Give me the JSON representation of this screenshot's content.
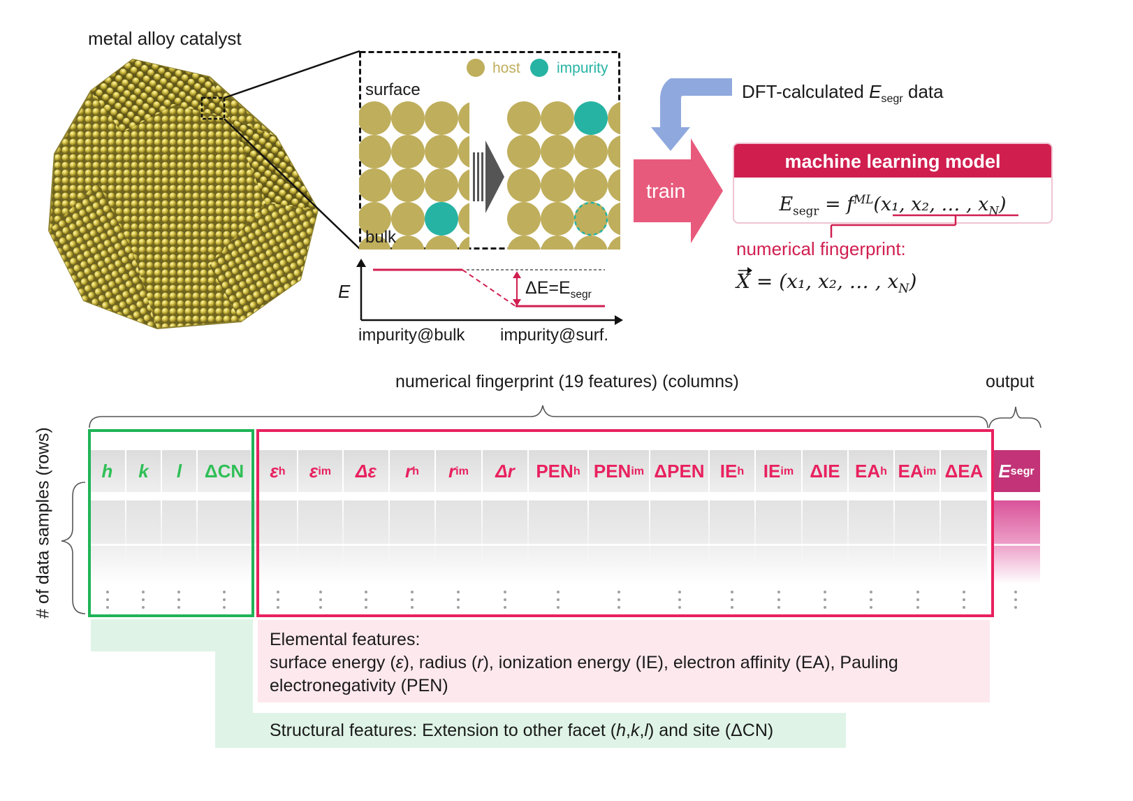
{
  "top": {
    "catalyst_label": "metal alloy catalyst",
    "legend_host": "host",
    "legend_impurity": "impurity",
    "surface_label": "surface",
    "bulk_label": "bulk",
    "energy_axis": "E",
    "delta_e_prefix": "ΔE=E",
    "delta_e_sub": "segr",
    "x_left": "impurity@bulk",
    "x_right": "impurity@surf.",
    "dft_prefix": "DFT-calculated ",
    "dft_e": "E",
    "dft_sub": "segr",
    "dft_suffix": " data",
    "train_label": "train",
    "ml_title": "machine learning model",
    "ml_eq_lhs": "E",
    "ml_eq_lhs_sub": "segr",
    "ml_eq_mid": " = f",
    "ml_eq_sup": "ML",
    "ml_eq_args": "(x₁, x₂, … , x",
    "ml_eq_argN": "N",
    "ml_eq_close": ")",
    "fingerprint_label": "numerical fingerprint:",
    "fp_eq_lhs": "X",
    "fp_eq_rest": " = (x₁, x₂, … , x",
    "fp_eq_N": "N",
    "fp_eq_close": ")"
  },
  "table": {
    "columns_label": "numerical fingerprint (19 features) (columns)",
    "output_label": "output",
    "rows_label": "# of data samples (rows)",
    "structural_headers": [
      "h",
      "k",
      "l",
      "ΔCN"
    ],
    "elemental_headers": [
      {
        "base": "ε",
        "sup": "h"
      },
      {
        "base": "ε",
        "sup": "im"
      },
      {
        "base": "Δε",
        "sup": ""
      },
      {
        "base": "r",
        "sup": "h"
      },
      {
        "base": "r",
        "sup": "im"
      },
      {
        "base": "Δr",
        "sup": ""
      },
      {
        "base": "PEN",
        "sup": "h"
      },
      {
        "base": "PEN",
        "sup": "im"
      },
      {
        "base": "ΔPEN",
        "sup": ""
      },
      {
        "base": "IE",
        "sup": "h"
      },
      {
        "base": "IE",
        "sup": "im"
      },
      {
        "base": "ΔIE",
        "sup": ""
      },
      {
        "base": "EA",
        "sup": "h"
      },
      {
        "base": "EA",
        "sup": "im"
      },
      {
        "base": "ΔEA",
        "sup": ""
      }
    ],
    "output_header": "E",
    "output_header_sub": "segr"
  },
  "notes": {
    "elemental_title": "Elemental features:",
    "elemental_line1_a": "surface energy (",
    "elemental_line1_eps": "ε",
    "elemental_line1_b": "), radius (",
    "elemental_line1_r": "r",
    "elemental_line1_c": "), ionization energy (IE), electron affinity (EA), Pauling",
    "elemental_line2": "electronegativity (PEN)",
    "structural_a": "Structural features: Extension to other facet (",
    "structural_h": "h",
    "structural_comma1": ",",
    "structural_k": "k",
    "structural_comma2": ",",
    "structural_l": "l",
    "structural_b": ") and site (ΔCN)"
  },
  "colors": {
    "host": "#bfae5c",
    "impurity": "#26b3a3",
    "structural": "#2fbf56",
    "elemental": "#e8215f",
    "train": "#e85a7c",
    "ml_header": "#d01e4f",
    "dft_arrow": "#8fa9de"
  }
}
